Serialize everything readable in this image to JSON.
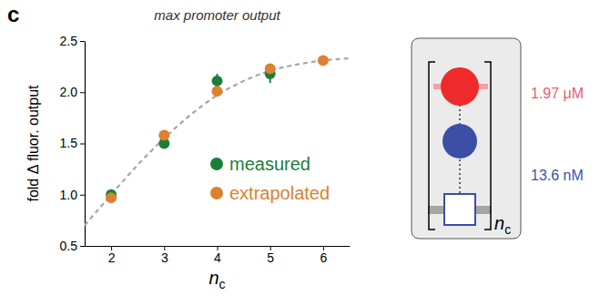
{
  "chart_data": {
    "type": "scatter",
    "panel_label": "c",
    "title": "max promoter output",
    "xlabel": "nc",
    "ylabel": "fold Δ fluor. output",
    "xlim": [
      1.5,
      6.5
    ],
    "xticks": [
      2,
      3,
      4,
      5,
      6
    ],
    "ylim": [
      0.5,
      2.5
    ],
    "yticks": [
      0.5,
      {
        "value": 1,
        "label": "1.0"
      },
      1.5,
      {
        "value": 2,
        "label": "2.0"
      },
      2.5
    ],
    "legend": "lower right",
    "series": [
      {
        "name": "measured",
        "color": "#1b7f3a",
        "marker": "circle",
        "x": [
          2,
          3,
          4,
          5
        ],
        "values": [
          1.0,
          1.5,
          2.11,
          2.18
        ],
        "errors": [
          0.04,
          0.05,
          0.07,
          0.09
        ]
      },
      {
        "name": "extrapolated",
        "color": "#dc8130",
        "marker": "circle",
        "x": [
          2,
          3,
          4,
          5,
          6
        ],
        "values": [
          0.97,
          1.58,
          2.01,
          2.23,
          2.31
        ]
      },
      {
        "type": "line",
        "line_style": "dashed",
        "color": "#a6a6a6",
        "x": [
          1.5,
          2,
          2.5,
          3,
          3.5,
          4,
          4.5,
          5,
          5.5,
          6,
          6.5
        ],
        "values": [
          0.7,
          1.0,
          1.29,
          1.55,
          1.78,
          1.97,
          2.11,
          2.21,
          2.27,
          2.31,
          2.33
        ]
      }
    ],
    "annotations": [
      {
        "text": "1.97 μM",
        "color": "#e8606a"
      },
      {
        "text": "13.6 nM",
        "color": "#3f51a8"
      },
      {
        "text": "nc"
      }
    ]
  }
}
